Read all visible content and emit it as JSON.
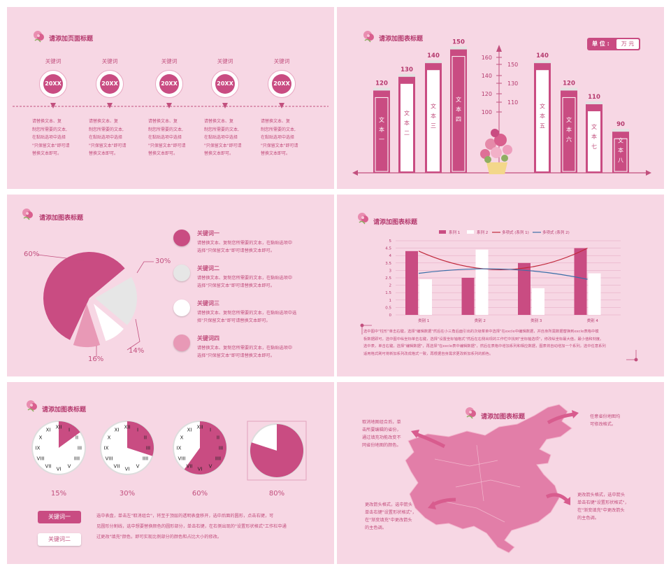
{
  "slide1": {
    "title": "请添加页面标题",
    "items": [
      {
        "keyword": "关键词",
        "year": "20XX",
        "text": "请替换文本、复\n制您所需要的文本,\n在黏贴选项中选择\n\"只保留文本\"即可请\n替换文本即可。"
      },
      {
        "keyword": "关键词",
        "year": "20XX",
        "text": "请替换文本、复\n制您所需要的文本,\n在黏贴选项中选择\n\"只保留文本\"即可请\n替换文本即可。"
      },
      {
        "keyword": "关键词",
        "year": "20XX",
        "text": "请替换文本、复\n制您所需要的文本,\n在黏贴选项中选择\n\"只保留文本\"即可请\n替换文本即可。"
      },
      {
        "keyword": "关键词",
        "year": "20XX",
        "text": "请替换文本、复\n制您所需要的文本,\n在黏贴选项中选择\n\"只保留文本\"即可请\n替换文本即可。"
      },
      {
        "keyword": "关键词",
        "year": "20XX",
        "text": "请替换文本、复\n制您所需要的文本,\n在黏贴选项中选择\n\"只保留文本\"即可请\n替换文本即可。"
      }
    ]
  },
  "slide2": {
    "title": "请添加图表标题",
    "unit_label": "单 位 :",
    "unit_value": "万 元",
    "axis_ticks_left": [
      "160",
      "140",
      "120",
      "100"
    ],
    "axis_ticks_right": [
      "150",
      "130",
      "110"
    ]
  },
  "slide3": {
    "title": "请添加图表标题",
    "items": [
      {
        "heading": "关键词一",
        "text": "请替换文本、复制您所需要的文本，在黏贴选项中\n选择\"只保留文本\"即可请替换文本即可。"
      },
      {
        "heading": "关键词二",
        "text": "请替换文本、复制您所需要的文本，在黏贴选项中\n选择\"只保留文本\"即可请替换文本即可。"
      },
      {
        "heading": "关键词三",
        "text": "请替换文本、复制您所需要的文本，在黏贴选项中选\n择\"只保留文本\"即可请替换文本即可。"
      },
      {
        "heading": "关键词四",
        "text": "请替换文本、复制您所需要的文本，在黏贴选项中\n选择\"只保留文本\"即可请替换文本即可。"
      }
    ]
  },
  "slide4": {
    "title": "请添加图表标题",
    "note": "选中图中\"柱形\"单击右键，选择\"编辑数据\"然后在小三角后面引出的次级菜单中选择\"在excle中编辑数据，并自身所需数据替换到excle表格中模\n板数据即可，选中图中纵坐标单击右键，选择\"设置坐标轴格式\"然后在右侧出现的工作栏中找到\"坐标轴选项\"，修改纵坐标最大值，最小值和刻度。\n选中表，单击右键，选择\"编辑数据\"，再选择\"在excle表中编辑数据\"，然后在表格中增加系列和相应数据，图表将自动增加一个系列，选中任意系列\n适用格式刷可将新加系列改成格式一致，再根据自身需求更改新加系列的颜色。"
  },
  "slide5": {
    "title": "请添加图表标题",
    "button1": "关键词一",
    "button2": "关键词二",
    "text": "选中表盘，单击左\"取消组合\"，将至于顶层的透明表盘移开，选中后面的圆形，点击右键，可\n见圆形分割线，选中想要替换颜色的圆形部分，单击右键，在右侧出现的\"设置形状格式\"工作栏中通\n过更改\"填充\"颜色，即可实现比例部分的颜色和占比大小的修改。"
  },
  "slide6": {
    "title": "请添加图表标题",
    "note1": "取消地图组合后，单\n击所要编辑的省份，\n通过填充功能改变不\n同省份地图的颜色。",
    "note2": "任意省份地图均\n可修改格式。",
    "note3": "更改箭头格式，选中箭头\n单击右键\"设置形状格式\"，\n在\"渐变填充\"中更改箭头\n的主色调。",
    "note4": "更改箭头格式，选中箭头\n单击右键\"设置形状格式\"，\n在\"渐变填充\"中更改箭头\n的主色调。"
  },
  "chart_data": [
    {
      "type": "bar",
      "categories": [
        "文本一",
        "文本二",
        "文本三",
        "文本四",
        "文本五",
        "文本六",
        "文本七",
        "文本八"
      ],
      "values": [
        120,
        130,
        140,
        150,
        140,
        120,
        110,
        90
      ]
    },
    {
      "type": "pie",
      "values": [
        60,
        30,
        14,
        16
      ],
      "labels": [
        "60%",
        "30%",
        "14%",
        "16%"
      ]
    },
    {
      "type": "bar",
      "categories": [
        "类别 1",
        "类别 2",
        "类别 3",
        "类别 4"
      ],
      "ylim": [
        0,
        5
      ],
      "y_ticks": [
        "5",
        "4.5",
        "4",
        "3.5",
        "3",
        "2.5",
        "2",
        "1.5",
        "1",
        "0.5",
        "0"
      ],
      "series": [
        {
          "name": "系列 1",
          "values": [
            4.3,
            2.5,
            3.5,
            4.5
          ]
        },
        {
          "name": "系列 2",
          "values": [
            2.4,
            4.4,
            1.8,
            2.8
          ]
        }
      ],
      "trendlines": [
        {
          "name": "多项式 (系列 1)"
        },
        {
          "name": "多项式 (系列 2)"
        }
      ]
    },
    {
      "type": "pie",
      "values": [
        15,
        30,
        60,
        80
      ],
      "labels": [
        "15%",
        "30%",
        "60%",
        "80%"
      ]
    }
  ]
}
